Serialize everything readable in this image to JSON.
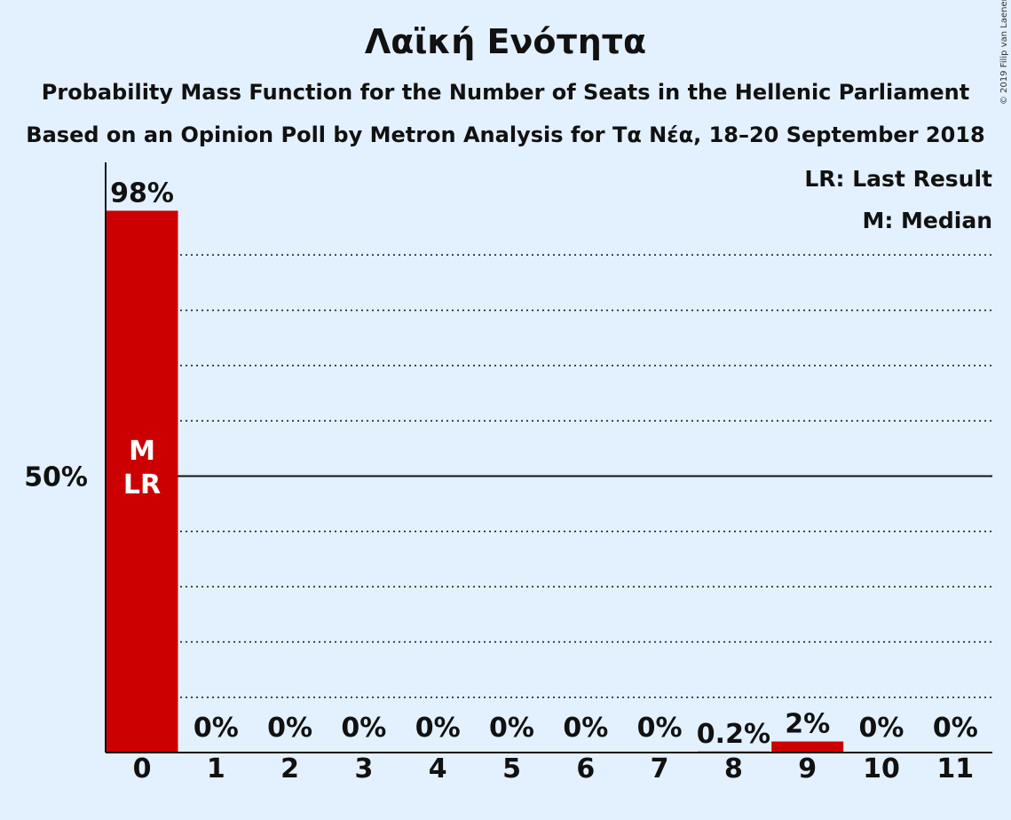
{
  "title": "Λαϊκή Ενότητα",
  "subtitle": "Probability Mass Function for the Number of Seats in the Hellenic Parliament",
  "subtitle2": "Based on an Opinion Poll by Metron Analysis for Τα Νέα, 18–20 September 2018",
  "copyright": "© 2019 Filip van Laenen",
  "colors": {
    "background": "#e3f0fd",
    "bar": "#cc0000",
    "text": "#111111"
  },
  "chart_data": {
    "type": "bar",
    "categories": [
      "0",
      "1",
      "2",
      "3",
      "4",
      "5",
      "6",
      "7",
      "8",
      "9",
      "10",
      "11"
    ],
    "values": [
      98,
      0,
      0,
      0,
      0,
      0,
      0,
      0,
      0.2,
      2,
      0,
      0
    ],
    "data_labels": [
      "98%",
      "0%",
      "0%",
      "0%",
      "0%",
      "0%",
      "0%",
      "0%",
      "0.2%",
      "2%",
      "0%",
      "0%"
    ],
    "ylim": [
      0,
      100
    ],
    "y_tick_labels": [
      {
        "value": 50,
        "label": "50%"
      }
    ],
    "gridlines": [
      10,
      20,
      30,
      40,
      50,
      60,
      70,
      80,
      90
    ],
    "bar_markers": [
      {
        "category": "0",
        "lines": [
          "M",
          "LR"
        ]
      }
    ],
    "legend": [
      "LR: Last Result",
      "M: Median"
    ],
    "legend_position": "top-right"
  }
}
